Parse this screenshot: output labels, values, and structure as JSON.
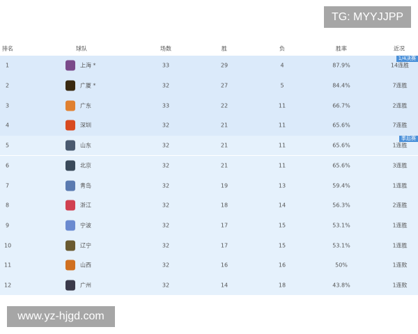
{
  "watermarks": {
    "top": "TG: MYYJJPP",
    "bottom": "www.yz-hjgd.com"
  },
  "headers": [
    "排名",
    "球队",
    "场数",
    "胜",
    "负",
    "胜率",
    "近况"
  ],
  "rows": [
    {
      "rank": "1",
      "team": "上海 *",
      "games": "33",
      "wins": "29",
      "losses": "4",
      "pct": "87.9%",
      "streak": "14连胜",
      "badge": "1/4决赛",
      "logo_color": "#7a4a8a"
    },
    {
      "rank": "2",
      "team": "广厦 *",
      "games": "32",
      "wins": "27",
      "losses": "5",
      "pct": "84.4%",
      "streak": "7连胜",
      "logo_color": "#3a2a10"
    },
    {
      "rank": "3",
      "team": "广东",
      "games": "33",
      "wins": "22",
      "losses": "11",
      "pct": "66.7%",
      "streak": "2连胜",
      "logo_color": "#e08030"
    },
    {
      "rank": "4",
      "team": "深圳",
      "games": "32",
      "wins": "21",
      "losses": "11",
      "pct": "65.6%",
      "streak": "7连胜",
      "logo_color": "#d84a20"
    },
    {
      "rank": "5",
      "team": "山东",
      "games": "32",
      "wins": "21",
      "losses": "11",
      "pct": "65.6%",
      "streak": "1连胜",
      "badge": "季后赛",
      "logo_color": "#4a5a70"
    },
    {
      "rank": "6",
      "team": "北京",
      "games": "32",
      "wins": "21",
      "losses": "11",
      "pct": "65.6%",
      "streak": "3连胜",
      "logo_color": "#3a4a5a"
    },
    {
      "rank": "7",
      "team": "青岛",
      "games": "32",
      "wins": "19",
      "losses": "13",
      "pct": "59.4%",
      "streak": "1连胜",
      "logo_color": "#5a7ab0"
    },
    {
      "rank": "8",
      "team": "浙江",
      "games": "32",
      "wins": "18",
      "losses": "14",
      "pct": "56.3%",
      "streak": "2连胜",
      "logo_color": "#d04050"
    },
    {
      "rank": "9",
      "team": "宁波",
      "games": "32",
      "wins": "17",
      "losses": "15",
      "pct": "53.1%",
      "streak": "1连胜",
      "logo_color": "#6a8ad0"
    },
    {
      "rank": "10",
      "team": "辽宁",
      "games": "32",
      "wins": "17",
      "losses": "15",
      "pct": "53.1%",
      "streak": "1连胜",
      "logo_color": "#6a5a30"
    },
    {
      "rank": "11",
      "team": "山西",
      "games": "32",
      "wins": "16",
      "losses": "16",
      "pct": "50%",
      "streak": "1连败",
      "logo_color": "#d07020"
    },
    {
      "rank": "12",
      "team": "广州",
      "games": "32",
      "wins": "14",
      "losses": "18",
      "pct": "43.8%",
      "streak": "1连败",
      "logo_color": "#3a3a4a"
    }
  ]
}
